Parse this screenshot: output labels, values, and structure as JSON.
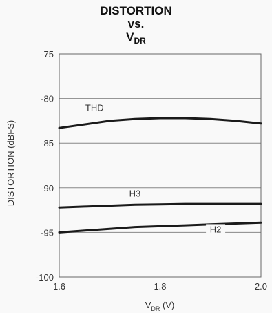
{
  "chart_data": {
    "type": "line",
    "title_lines": [
      "DISTORTION",
      "vs."
    ],
    "title_var": "V",
    "title_var_sub": "DR",
    "xlabel_main": "V",
    "xlabel_sub": "DR",
    "xlabel_unit": " (V)",
    "ylabel": "DISTORTION (dBFS)",
    "xlim": [
      1.6,
      2.0
    ],
    "ylim": [
      -100,
      -75
    ],
    "x_ticks": [
      1.6,
      1.8,
      2.0
    ],
    "x_tick_labels": [
      "1.6",
      "1.8",
      "2.0"
    ],
    "y_ticks": [
      -75,
      -80,
      -85,
      -90,
      -95,
      -100
    ],
    "y_tick_labels": [
      "-75",
      "-80",
      "-85",
      "-90",
      "-95",
      "-100"
    ],
    "grid": true,
    "series": [
      {
        "name": "THD",
        "x": [
          1.6,
          1.65,
          1.7,
          1.75,
          1.8,
          1.85,
          1.9,
          1.95,
          2.0
        ],
        "y": [
          -83.3,
          -82.9,
          -82.5,
          -82.3,
          -82.2,
          -82.2,
          -82.3,
          -82.5,
          -82.8
        ]
      },
      {
        "name": "H3",
        "x": [
          1.6,
          1.65,
          1.7,
          1.75,
          1.8,
          1.85,
          1.9,
          1.95,
          2.0
        ],
        "y": [
          -92.2,
          -92.1,
          -92.0,
          -91.9,
          -91.85,
          -91.8,
          -91.8,
          -91.8,
          -91.8
        ]
      },
      {
        "name": "H2",
        "x": [
          1.6,
          1.65,
          1.7,
          1.75,
          1.8,
          1.85,
          1.9,
          1.95,
          2.0
        ],
        "y": [
          -95.0,
          -94.8,
          -94.6,
          -94.4,
          -94.3,
          -94.2,
          -94.1,
          -94.0,
          -93.9
        ]
      }
    ],
    "series_labels": [
      {
        "text": "THD",
        "x": 1.67,
        "y": -81.4
      },
      {
        "text": "H3",
        "x": 1.75,
        "y": -91.0
      },
      {
        "text": "H2",
        "x": 1.91,
        "y": -95.0
      }
    ],
    "line_color": "#1a1a1a",
    "grid_color": "#888888"
  }
}
